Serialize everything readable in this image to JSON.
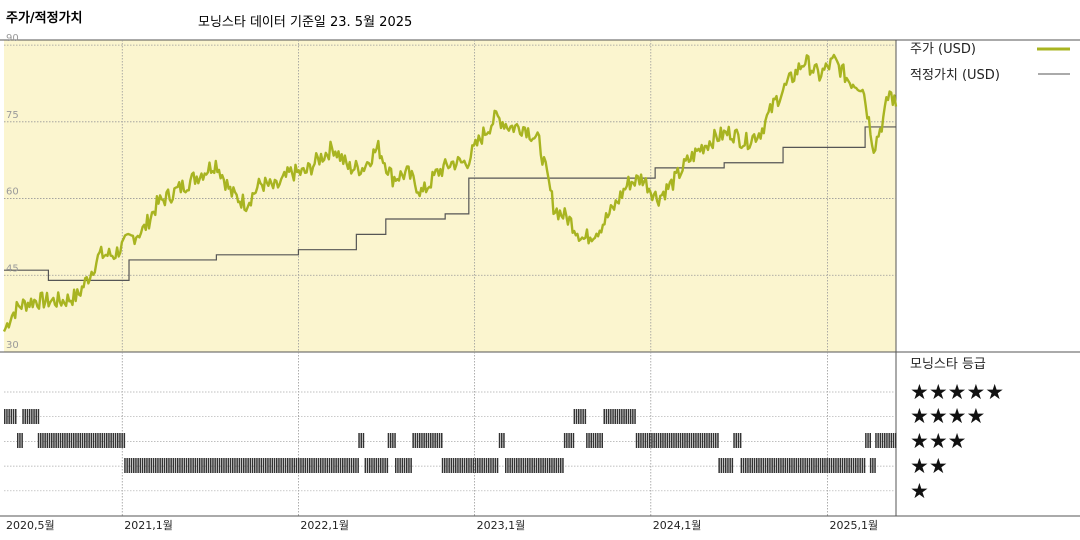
{
  "header": {
    "title": "주가/적정가치",
    "subtitle": "모닝스타 데이터 기준일 23. 5월 2025"
  },
  "legend": {
    "price_label": "주가 (USD)",
    "fair_value_label": "적정가치 (USD)",
    "rating_title": "모닝스타 등급",
    "stars": [
      "★★★★★",
      "★★★★",
      "★★★",
      "★★",
      "★"
    ]
  },
  "colors": {
    "price": "#a8b421",
    "fair_value": "#555555",
    "plot_bg": "#fbf5cf",
    "grid": "#999999",
    "rating_bar": "#333333"
  },
  "chart_data": {
    "type": "line",
    "x_ticks": [
      "2020,5월",
      "2021,1월",
      "2022,1월",
      "2023,1월",
      "2024,1월",
      "2025,1월"
    ],
    "y_ticks": [
      30,
      45,
      60,
      75,
      90
    ],
    "ylim": [
      30,
      91
    ],
    "xlim": [
      "2020-05-01",
      "2025-05-23"
    ],
    "grid": true,
    "legend_position": "right",
    "series": [
      {
        "name": "주가 (USD)",
        "points": [
          [
            "2020-05-01",
            34
          ],
          [
            "2020-05-15",
            37
          ],
          [
            "2020-06-01",
            39
          ],
          [
            "2020-07-01",
            40
          ],
          [
            "2020-08-01",
            40
          ],
          [
            "2020-09-01",
            40
          ],
          [
            "2020-10-01",
            41
          ],
          [
            "2020-10-25",
            45
          ],
          [
            "2020-11-15",
            49
          ],
          [
            "2020-12-15",
            49
          ],
          [
            "2021-01-15",
            52
          ],
          [
            "2021-02-15",
            54
          ],
          [
            "2021-03-15",
            59
          ],
          [
            "2021-04-15",
            61
          ],
          [
            "2021-05-15",
            63
          ],
          [
            "2021-06-15",
            65
          ],
          [
            "2021-07-15",
            67
          ],
          [
            "2021-08-15",
            61
          ],
          [
            "2021-09-15",
            59
          ],
          [
            "2021-10-15",
            63
          ],
          [
            "2021-11-15",
            62
          ],
          [
            "2021-12-15",
            65
          ],
          [
            "2022-01-15",
            65
          ],
          [
            "2022-02-15",
            68
          ],
          [
            "2022-03-15",
            70
          ],
          [
            "2022-04-15",
            66
          ],
          [
            "2022-05-15",
            66
          ],
          [
            "2022-06-15",
            70
          ],
          [
            "2022-07-15",
            64
          ],
          [
            "2022-08-15",
            65
          ],
          [
            "2022-09-15",
            61
          ],
          [
            "2022-10-15",
            65
          ],
          [
            "2022-11-15",
            67
          ],
          [
            "2022-12-15",
            67
          ],
          [
            "2023-01-15",
            72
          ],
          [
            "2023-02-15",
            76
          ],
          [
            "2023-03-15",
            74
          ],
          [
            "2023-04-15",
            74
          ],
          [
            "2023-05-15",
            71
          ],
          [
            "2023-06-15",
            58
          ],
          [
            "2023-07-15",
            56
          ],
          [
            "2023-08-15",
            52
          ],
          [
            "2023-09-15",
            54
          ],
          [
            "2023-10-15",
            58
          ],
          [
            "2023-11-15",
            63
          ],
          [
            "2023-12-15",
            64
          ],
          [
            "2024-01-15",
            60
          ],
          [
            "2024-02-15",
            63
          ],
          [
            "2024-03-15",
            67
          ],
          [
            "2024-04-15",
            70
          ],
          [
            "2024-05-15",
            72
          ],
          [
            "2024-06-15",
            73
          ],
          [
            "2024-07-15",
            71
          ],
          [
            "2024-08-15",
            73
          ],
          [
            "2024-09-15",
            79
          ],
          [
            "2024-10-15",
            83
          ],
          [
            "2024-11-15",
            87
          ],
          [
            "2024-12-15",
            84
          ],
          [
            "2025-01-15",
            87
          ],
          [
            "2025-02-15",
            83
          ],
          [
            "2025-03-15",
            82
          ],
          [
            "2025-04-07",
            70
          ],
          [
            "2025-04-25",
            75
          ],
          [
            "2025-05-10",
            81
          ],
          [
            "2025-05-23",
            78
          ]
        ]
      },
      {
        "name": "적정가치 (USD)",
        "steps": [
          [
            "2020-05-01",
            46
          ],
          [
            "2020-08-01",
            44
          ],
          [
            "2021-01-15",
            48
          ],
          [
            "2021-07-15",
            49
          ],
          [
            "2022-01-01",
            50
          ],
          [
            "2022-05-01",
            53
          ],
          [
            "2022-07-01",
            56
          ],
          [
            "2022-11-01",
            57
          ],
          [
            "2022-12-20",
            64
          ],
          [
            "2024-01-10",
            66
          ],
          [
            "2024-06-01",
            67
          ],
          [
            "2024-10-01",
            70
          ],
          [
            "2025-03-20",
            74
          ],
          [
            "2025-05-23",
            74
          ]
        ]
      }
    ],
    "rating_segments": [
      {
        "stars": 4,
        "from": "2020-05-01",
        "to": "2020-05-28"
      },
      {
        "stars": 3,
        "from": "2020-05-28",
        "to": "2020-06-08"
      },
      {
        "stars": 4,
        "from": "2020-06-08",
        "to": "2020-07-10"
      },
      {
        "stars": 3,
        "from": "2020-07-10",
        "to": "2021-01-05"
      },
      {
        "stars": 2,
        "from": "2021-01-05",
        "to": "2022-05-05"
      },
      {
        "stars": 3,
        "from": "2022-05-05",
        "to": "2022-05-18"
      },
      {
        "stars": 2,
        "from": "2022-05-18",
        "to": "2022-07-05"
      },
      {
        "stars": 3,
        "from": "2022-07-05",
        "to": "2022-07-20"
      },
      {
        "stars": 2,
        "from": "2022-07-20",
        "to": "2022-08-25"
      },
      {
        "stars": 3,
        "from": "2022-08-25",
        "to": "2022-10-25"
      },
      {
        "stars": 2,
        "from": "2022-10-25",
        "to": "2023-02-20"
      },
      {
        "stars": 3,
        "from": "2023-02-20",
        "to": "2023-03-05"
      },
      {
        "stars": 2,
        "from": "2023-03-05",
        "to": "2023-07-05"
      },
      {
        "stars": 3,
        "from": "2023-07-05",
        "to": "2023-07-25"
      },
      {
        "stars": 4,
        "from": "2023-07-25",
        "to": "2023-08-20"
      },
      {
        "stars": 3,
        "from": "2023-08-20",
        "to": "2023-09-25"
      },
      {
        "stars": 4,
        "from": "2023-09-25",
        "to": "2023-12-01"
      },
      {
        "stars": 3,
        "from": "2023-12-01",
        "to": "2024-05-20"
      },
      {
        "stars": 2,
        "from": "2024-05-20",
        "to": "2024-06-20"
      },
      {
        "stars": 3,
        "from": "2024-06-20",
        "to": "2024-07-05"
      },
      {
        "stars": 2,
        "from": "2024-07-05",
        "to": "2025-03-20"
      },
      {
        "stars": 3,
        "from": "2025-03-20",
        "to": "2025-03-30"
      },
      {
        "stars": 2,
        "from": "2025-03-30",
        "to": "2025-04-10"
      },
      {
        "stars": 3,
        "from": "2025-04-10",
        "to": "2025-05-23"
      }
    ]
  }
}
